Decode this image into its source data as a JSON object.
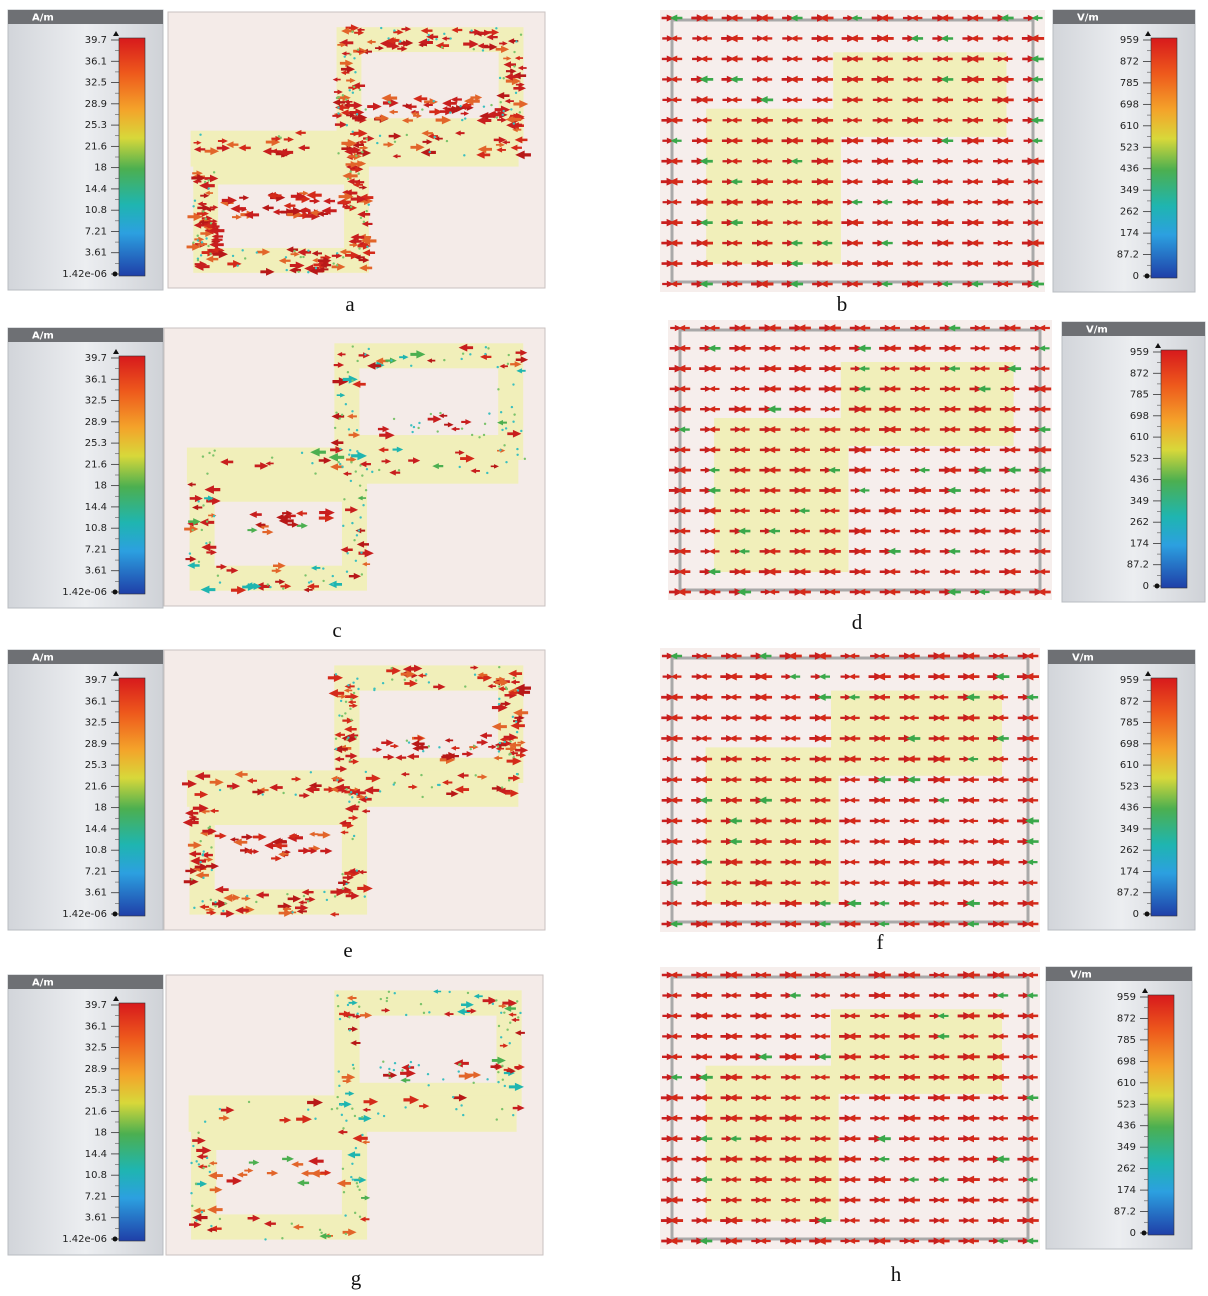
{
  "panels": [
    {
      "label": "a",
      "colorbar": {
        "unit": "A/m",
        "ticks": [
          "39.7",
          "36.1",
          "32.5",
          "28.9",
          "25.3",
          "21.6",
          "18",
          "14.4",
          "10.8",
          "7.21",
          "3.61",
          "1.42e-06"
        ]
      }
    },
    {
      "label": "b",
      "colorbar": {
        "unit": "V/m",
        "ticks": [
          "959",
          "872",
          "785",
          "698",
          "610",
          "523",
          "436",
          "349",
          "262",
          "174",
          "87.2",
          "0"
        ]
      }
    },
    {
      "label": "c",
      "colorbar": {
        "unit": "A/m",
        "ticks": [
          "39.7",
          "36.1",
          "32.5",
          "28.9",
          "25.3",
          "21.6",
          "18",
          "14.4",
          "10.8",
          "7.21",
          "3.61",
          "1.42e-06"
        ]
      }
    },
    {
      "label": "d",
      "colorbar": {
        "unit": "V/m",
        "ticks": [
          "959",
          "872",
          "785",
          "698",
          "610",
          "523",
          "436",
          "349",
          "262",
          "174",
          "87.2",
          "0"
        ]
      }
    },
    {
      "label": "e",
      "colorbar": {
        "unit": "A/m",
        "ticks": [
          "39.7",
          "36.1",
          "32.5",
          "28.9",
          "25.3",
          "21.6",
          "18",
          "14.4",
          "10.8",
          "7.21",
          "3.61",
          "1.42e-06"
        ]
      }
    },
    {
      "label": "f",
      "colorbar": {
        "unit": "V/m",
        "ticks": [
          "959",
          "872",
          "785",
          "698",
          "610",
          "523",
          "436",
          "349",
          "262",
          "174",
          "87.2",
          "0"
        ]
      }
    },
    {
      "label": "g",
      "colorbar": {
        "unit": "A/m",
        "ticks": [
          "39.7",
          "36.1",
          "32.5",
          "28.9",
          "25.3",
          "21.6",
          "18",
          "14.4",
          "10.8",
          "7.21",
          "3.61",
          "1.42e-06"
        ]
      }
    },
    {
      "label": "h",
      "colorbar": {
        "unit": "V/m",
        "ticks": [
          "959",
          "872",
          "785",
          "698",
          "610",
          "523",
          "436",
          "349",
          "262",
          "174",
          "87.2",
          "0"
        ]
      }
    }
  ]
}
